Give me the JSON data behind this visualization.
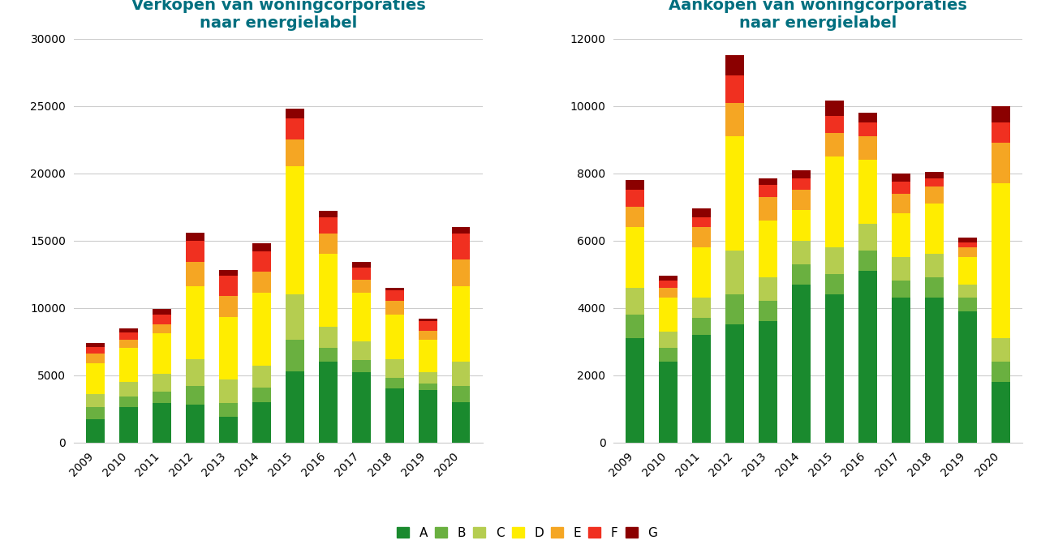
{
  "years": [
    2009,
    2010,
    2011,
    2012,
    2013,
    2014,
    2015,
    2016,
    2017,
    2018,
    2019,
    2020
  ],
  "title_left": "Verkopen van woningcorporaties\nnaar energielabel",
  "title_right": "Aankopen van woningcorporaties\nnaar energielabel",
  "title_color": "#006f7f",
  "labels": [
    "A",
    "B",
    "C",
    "D",
    "E",
    "F",
    "G"
  ],
  "colors": [
    "#1a8a2e",
    "#6ab040",
    "#b5cd50",
    "#ffed00",
    "#f5a623",
    "#f03020",
    "#8b0000"
  ],
  "verkopen": {
    "A": [
      1700,
      2600,
      2900,
      2800,
      1900,
      3000,
      5300,
      6000,
      5200,
      4000,
      3900,
      3000
    ],
    "B": [
      900,
      800,
      900,
      1400,
      1000,
      1100,
      2300,
      1000,
      900,
      800,
      500,
      1200
    ],
    "C": [
      1000,
      1100,
      1300,
      2000,
      1800,
      1600,
      3400,
      1600,
      1400,
      1400,
      800,
      1800
    ],
    "D": [
      2300,
      2500,
      3000,
      5400,
      4600,
      5400,
      9500,
      5400,
      3600,
      3300,
      2400,
      5600
    ],
    "E": [
      700,
      600,
      700,
      1800,
      1600,
      1600,
      2000,
      1500,
      1000,
      1000,
      700,
      2000
    ],
    "F": [
      500,
      600,
      700,
      1600,
      1500,
      1500,
      1600,
      1200,
      900,
      800,
      700,
      1900
    ],
    "G": [
      300,
      300,
      400,
      600,
      400,
      600,
      700,
      500,
      400,
      200,
      200,
      500
    ]
  },
  "aankopen": {
    "A": [
      3100,
      2400,
      3200,
      3500,
      3600,
      4700,
      4400,
      5100,
      4300,
      4300,
      3900,
      1800
    ],
    "B": [
      700,
      400,
      500,
      900,
      600,
      600,
      600,
      600,
      500,
      600,
      400,
      600
    ],
    "C": [
      800,
      500,
      600,
      1300,
      700,
      700,
      800,
      800,
      700,
      700,
      400,
      700
    ],
    "D": [
      1800,
      1000,
      1500,
      3400,
      1700,
      900,
      2700,
      1900,
      1300,
      1500,
      800,
      4600
    ],
    "E": [
      600,
      300,
      600,
      1000,
      700,
      600,
      700,
      700,
      600,
      500,
      300,
      1200
    ],
    "F": [
      500,
      200,
      300,
      800,
      350,
      350,
      500,
      400,
      350,
      250,
      150,
      600
    ],
    "G": [
      300,
      150,
      250,
      600,
      200,
      250,
      450,
      300,
      250,
      200,
      150,
      500
    ]
  },
  "ylim_left": [
    0,
    30000
  ],
  "ylim_right": [
    0,
    12000
  ],
  "yticks_left": [
    0,
    5000,
    10000,
    15000,
    20000,
    25000,
    30000
  ],
  "yticks_right": [
    0,
    2000,
    4000,
    6000,
    8000,
    10000,
    12000
  ],
  "background_color": "#ffffff",
  "bar_width": 0.55,
  "grid_color": "#cccccc",
  "tick_fontsize": 10,
  "title_fontsize": 14,
  "border_color": "#cccccc"
}
